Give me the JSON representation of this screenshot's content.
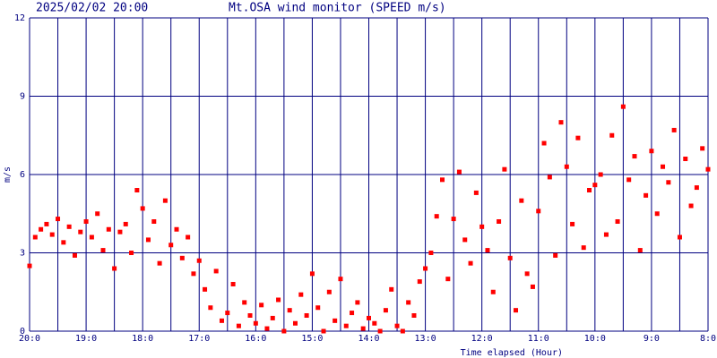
{
  "chart_data": {
    "type": "scatter",
    "title": "Mt.OSA wind monitor (SPEED m/s)",
    "subtitle": "2025/02/02 20:00",
    "ylabel": "m/s",
    "xlabel": "Time elapsed (Hour)",
    "color": "#ff0000",
    "grid_color": "#000080",
    "grid": true,
    "xlim": [
      20,
      8
    ],
    "ylim": [
      0,
      12
    ],
    "yticks": [
      0,
      3,
      6,
      9,
      12
    ],
    "xticks": [
      {
        "value": 20,
        "label": "20:0"
      },
      {
        "value": 19,
        "label": "19:0"
      },
      {
        "value": 18,
        "label": "18:0"
      },
      {
        "value": 17,
        "label": "17:0"
      },
      {
        "value": 16,
        "label": "16:0"
      },
      {
        "value": 15,
        "label": "15:0"
      },
      {
        "value": 14,
        "label": "14:0"
      },
      {
        "value": 13,
        "label": "13:0"
      },
      {
        "value": 12,
        "label": "12:0"
      },
      {
        "value": 11,
        "label": "11:0"
      },
      {
        "value": 10,
        "label": "10:0"
      },
      {
        "value": 9,
        "label": "9:0"
      },
      {
        "value": 8,
        "label": "8:0"
      }
    ],
    "minor_xticks": [
      19.5,
      18.5,
      17.5,
      16.5,
      15.5,
      14.5,
      13.5,
      12.5,
      11.5,
      10.5,
      9.5,
      8.5
    ],
    "x": [
      20.0,
      19.9,
      19.8,
      19.7,
      19.6,
      19.5,
      19.4,
      19.3,
      19.2,
      19.1,
      19.0,
      18.9,
      18.8,
      18.7,
      18.6,
      18.5,
      18.4,
      18.3,
      18.2,
      18.1,
      18.0,
      17.9,
      17.8,
      17.7,
      17.6,
      17.5,
      17.4,
      17.3,
      17.2,
      17.1,
      17.0,
      16.9,
      16.8,
      16.7,
      16.6,
      16.5,
      16.4,
      16.3,
      16.2,
      16.1,
      16.0,
      15.9,
      15.8,
      15.7,
      15.6,
      15.5,
      15.4,
      15.3,
      15.2,
      15.1,
      15.0,
      14.9,
      14.8,
      14.7,
      14.6,
      14.5,
      14.4,
      14.3,
      14.2,
      14.1,
      14.0,
      13.9,
      13.8,
      13.7,
      13.6,
      13.5,
      13.4,
      13.3,
      13.2,
      13.1,
      13.0,
      12.9,
      12.8,
      12.7,
      12.6,
      12.5,
      12.4,
      12.3,
      12.2,
      12.1,
      12.0,
      11.9,
      11.8,
      11.7,
      11.6,
      11.5,
      11.4,
      11.3,
      11.2,
      11.1,
      11.0,
      10.9,
      10.8,
      10.7,
      10.6,
      10.5,
      10.4,
      10.3,
      10.2,
      10.1,
      10.0,
      9.9,
      9.8,
      9.7,
      9.6,
      9.5,
      9.4,
      9.3,
      9.2,
      9.1,
      9.0,
      8.9,
      8.8,
      8.7,
      8.6,
      8.5,
      8.4,
      8.3,
      8.2,
      8.1,
      8.0
    ],
    "values": [
      2.5,
      3.6,
      3.9,
      4.1,
      3.7,
      4.3,
      3.4,
      4.0,
      2.9,
      3.8,
      4.2,
      3.6,
      4.5,
      3.1,
      3.9,
      2.4,
      3.8,
      4.1,
      3.0,
      5.4,
      4.7,
      3.5,
      4.2,
      2.6,
      5.0,
      3.3,
      3.9,
      2.8,
      3.6,
      2.2,
      2.7,
      1.6,
      0.9,
      2.3,
      0.4,
      0.7,
      1.8,
      0.2,
      1.1,
      0.6,
      0.3,
      1.0,
      0.1,
      0.5,
      1.2,
      0.0,
      0.8,
      0.3,
      1.4,
      0.6,
      2.2,
      0.9,
      0.0,
      1.5,
      0.4,
      2.0,
      0.2,
      0.7,
      1.1,
      0.1,
      0.5,
      0.3,
      0.0,
      0.8,
      1.6,
      0.2,
      0.0,
      1.1,
      0.6,
      1.9,
      2.4,
      3.0,
      4.4,
      5.8,
      2.0,
      4.3,
      6.1,
      3.5,
      2.6,
      5.3,
      4.0,
      3.1,
      1.5,
      4.2,
      6.2,
      2.8,
      0.8,
      5.0,
      2.2,
      1.7,
      4.6,
      7.2,
      5.9,
      2.9,
      8.0,
      6.3,
      4.1,
      7.4,
      3.2,
      5.4,
      5.6,
      6.0,
      3.7,
      7.5,
      4.2,
      8.6,
      5.8,
      6.7,
      3.1,
      5.2,
      6.9,
      4.5,
      6.3,
      5.7,
      7.7,
      3.6,
      6.6,
      4.8,
      5.5,
      7.0,
      6.2
    ]
  }
}
